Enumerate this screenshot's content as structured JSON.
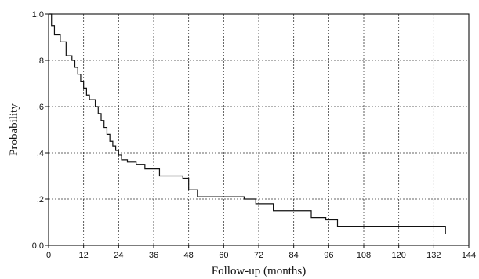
{
  "chart_data": {
    "type": "line",
    "xlabel": "Follow-up (months)",
    "ylabel": "Probability",
    "xlim": [
      0,
      144
    ],
    "ylim": [
      0,
      1
    ],
    "x_ticks": [
      0,
      12,
      24,
      36,
      48,
      60,
      72,
      84,
      96,
      108,
      120,
      132,
      144
    ],
    "x_tick_labels": [
      "0",
      "12",
      "24",
      "36",
      "48",
      "60",
      "72",
      "84",
      "96",
      "108",
      "120",
      "132",
      "144"
    ],
    "y_ticks": [
      0,
      0.2,
      0.4,
      0.6,
      0.8,
      1.0
    ],
    "y_tick_labels": [
      "0,0",
      ",2",
      ",4",
      ",6",
      ",8",
      "1,0"
    ],
    "grid": true,
    "step": true,
    "series": [
      {
        "x": [
          0,
          1,
          2,
          4,
          6,
          8,
          9,
          10,
          11,
          12,
          13,
          14,
          16,
          17,
          18,
          19,
          20,
          21,
          22,
          23,
          24,
          25,
          27,
          30,
          33,
          38,
          46,
          48,
          51,
          53,
          67,
          71,
          77,
          90,
          95,
          99,
          135,
          136
        ],
        "y": [
          1.0,
          0.95,
          0.91,
          0.88,
          0.82,
          0.8,
          0.77,
          0.74,
          0.71,
          0.68,
          0.65,
          0.63,
          0.6,
          0.57,
          0.54,
          0.51,
          0.48,
          0.45,
          0.43,
          0.41,
          0.39,
          0.37,
          0.36,
          0.35,
          0.33,
          0.3,
          0.29,
          0.24,
          0.21,
          0.21,
          0.2,
          0.18,
          0.15,
          0.12,
          0.11,
          0.08,
          0.08,
          0.05
        ]
      }
    ]
  }
}
